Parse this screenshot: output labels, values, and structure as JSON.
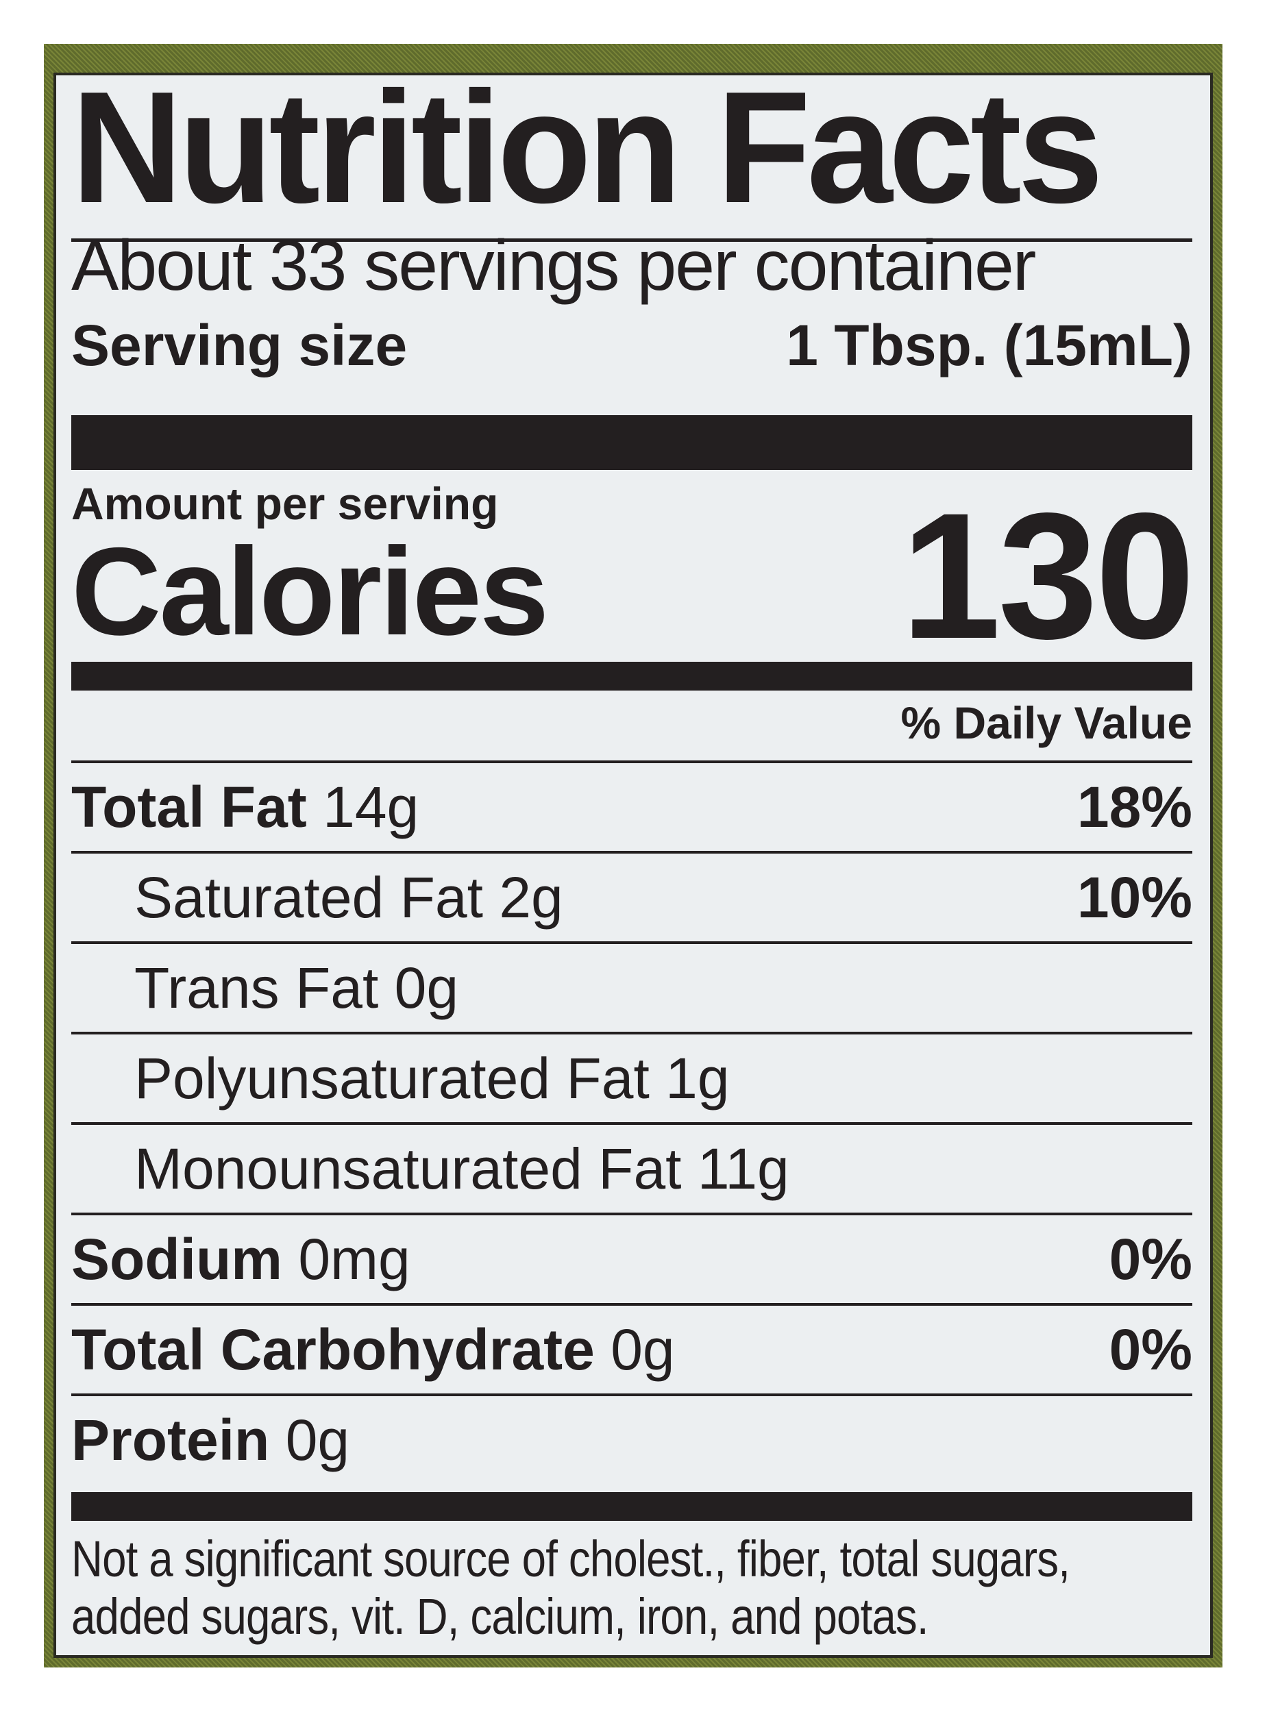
{
  "label": {
    "title": "Nutrition Facts",
    "servings_per_container": "About 33 servings per container",
    "serving_size_label": "Serving size",
    "serving_size_value": "1 Tbsp. (15mL)",
    "amount_per_serving": "Amount per serving",
    "calories_label": "Calories",
    "calories_value": "130",
    "daily_value_header": "% Daily Value",
    "rows": [
      {
        "name": "Total Fat",
        "amount": "14g",
        "dv": "18%"
      },
      {
        "name": "Saturated Fat",
        "amount": "2g",
        "dv": "10%"
      },
      {
        "name": "Trans Fat",
        "amount": "0g",
        "dv": ""
      },
      {
        "name": "Polyunsaturated Fat",
        "amount": "1g",
        "dv": ""
      },
      {
        "name": "Monounsaturated Fat",
        "amount": "11g",
        "dv": ""
      },
      {
        "name": "Sodium",
        "amount": "0mg",
        "dv": "0%"
      },
      {
        "name": "Total Carbohydrate",
        "amount": "0g",
        "dv": "0%"
      },
      {
        "name": "Protein",
        "amount": "0g",
        "dv": ""
      }
    ],
    "footnote_line1": "Not a significant source of cholest., fiber, total sugars,",
    "footnote_line2": "added sugars, vit. D, calcium, iron, and potas."
  },
  "colors": {
    "frame": "#5f6b2c",
    "panel": "#eceff1",
    "ink": "#231f20"
  }
}
